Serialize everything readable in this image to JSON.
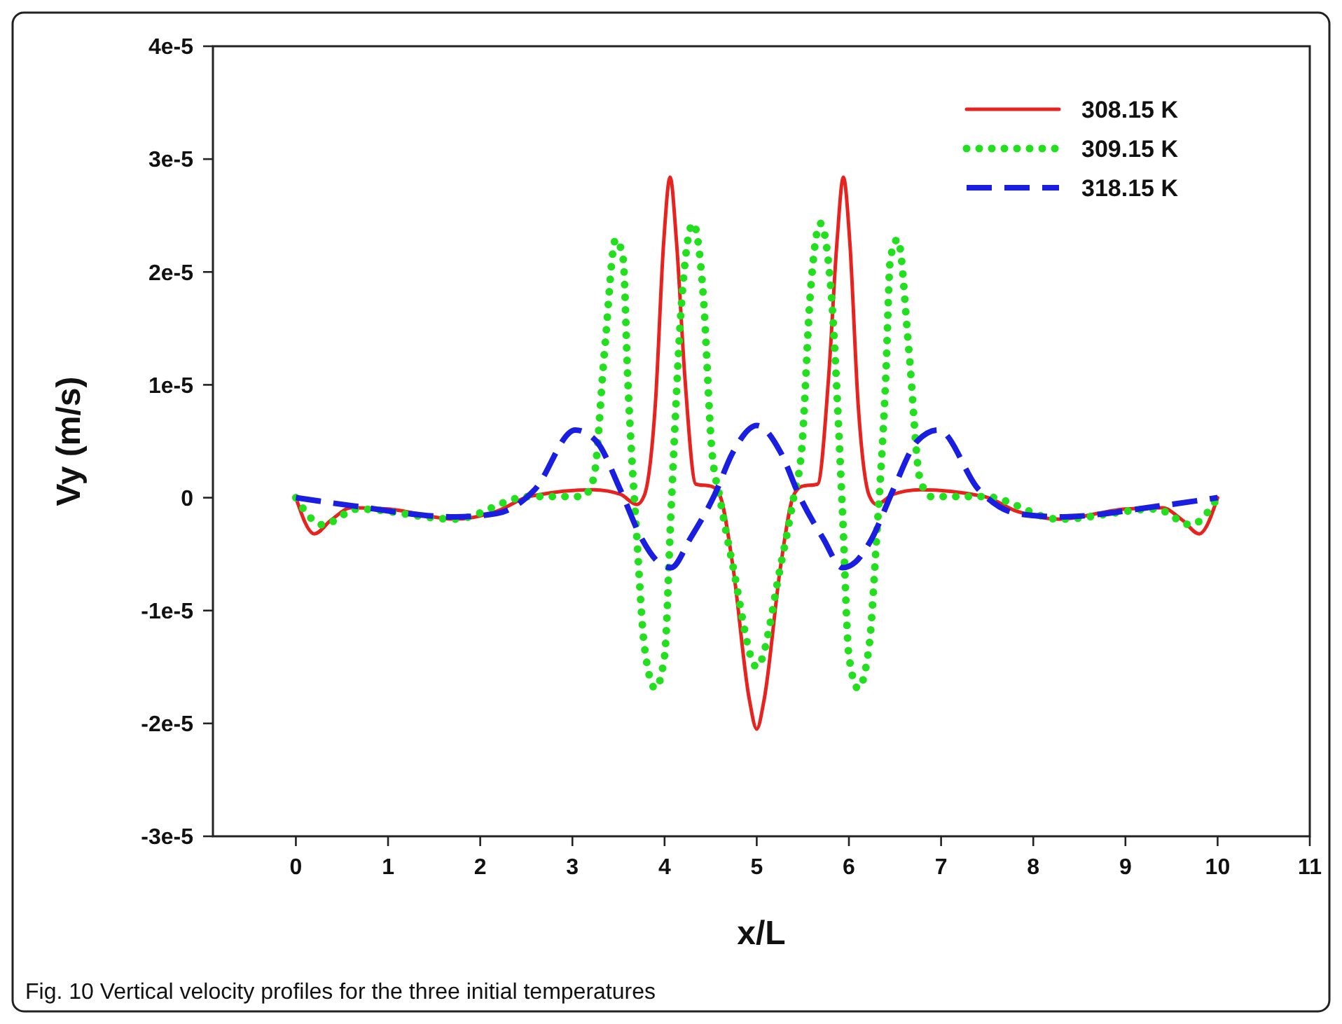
{
  "chart_data": {
    "type": "line",
    "xlabel": "x/L",
    "ylabel": "Vy (m/s)",
    "xlim": [
      -0.9,
      11
    ],
    "xticks": [
      0,
      1,
      2,
      3,
      4,
      5,
      6,
      7,
      8,
      9,
      10,
      11
    ],
    "ylim": [
      -3e-05,
      4e-05
    ],
    "yticks": [
      {
        "value": -3e-05,
        "label": "-3e-5"
      },
      {
        "value": -2e-05,
        "label": "-2e-5"
      },
      {
        "value": -1e-05,
        "label": "-1e-5"
      },
      0,
      {
        "value": 1e-05,
        "label": "1e-5"
      },
      {
        "value": 2e-05,
        "label": "2e-5"
      },
      {
        "value": 3e-05,
        "label": "3e-5"
      },
      {
        "value": 4e-05,
        "label": "4e-5"
      }
    ],
    "legend": "top right",
    "grid": false,
    "series": [
      {
        "name": "308.15 K",
        "color": "#e8231f",
        "line_style": "solid",
        "x": [
          0,
          0.2,
          0.38,
          0.6,
          1.0,
          1.72,
          2.18,
          2.53,
          3.23,
          3.52,
          3.7,
          3.78,
          3.9,
          3.99,
          4.06,
          4.13,
          4.22,
          4.34,
          4.51,
          4.6,
          4.74,
          4.92,
          5,
          5.08,
          5.26,
          5.4,
          5.49,
          5.66,
          5.78,
          5.87,
          5.94,
          6.01,
          6.1,
          6.22,
          6.3,
          6.48,
          6.77,
          7.47,
          7.82,
          8.28,
          9.0,
          9.4,
          9.62,
          9.8,
          10
        ],
        "values": [
          0,
          -3.2e-06,
          -2e-06,
          -9e-07,
          -1e-06,
          -1.9e-06,
          -1.2e-06,
          1e-07,
          7e-07,
          3e-07,
          -6e-07,
          2e-07,
          8.3e-06,
          2.26e-05,
          2.84e-05,
          2.26e-05,
          1.07e-05,
          1.2e-06,
          1e-06,
          2e-07,
          -6e-06,
          -1.79e-05,
          -2.05e-05,
          -1.79e-05,
          -6e-06,
          2e-07,
          1e-06,
          1.2e-06,
          1.07e-05,
          2.26e-05,
          2.84e-05,
          2.26e-05,
          8.3e-06,
          2e-07,
          -6e-07,
          3e-07,
          7e-07,
          1e-07,
          -1.2e-06,
          -1.9e-06,
          -1e-06,
          -9e-07,
          -2e-06,
          -3.2e-06,
          0
        ]
      },
      {
        "name": "309.15 K",
        "color": "#22e01e",
        "line_style": "dotted",
        "x": [
          0,
          0.29,
          0.67,
          1.72,
          2.53,
          3.11,
          3.23,
          3.35,
          3.47,
          3.55,
          3.6,
          3.7,
          3.78,
          3.9,
          4.0,
          4.07,
          4.19,
          4.31,
          4.42,
          4.51,
          4.6,
          4.74,
          5,
          5.26,
          5.4,
          5.49,
          5.58,
          5.69,
          5.81,
          5.93,
          6.0,
          6.1,
          6.22,
          6.3,
          6.4,
          6.45,
          6.53,
          6.65,
          6.77,
          6.89,
          7.47,
          8.28,
          9.33,
          9.71,
          10
        ],
        "values": [
          0,
          -2.4e-06,
          -1e-06,
          -1.9e-06,
          1e-07,
          1e-07,
          1.7e-06,
          1.31e-05,
          2.29e-05,
          2.12e-05,
          1.07e-05,
          -3.6e-06,
          -1.31e-05,
          -1.69e-05,
          -1.4e-05,
          -1.2e-06,
          1.79e-05,
          2.43e-05,
          1.79e-05,
          4.5e-06,
          0,
          -6e-06,
          -1.5e-05,
          -6e-06,
          0,
          4.5e-06,
          1.79e-05,
          2.43e-05,
          1.79e-05,
          -1.2e-06,
          -1.4e-05,
          -1.69e-05,
          -1.31e-05,
          -3.6e-06,
          1.07e-05,
          2.12e-05,
          2.29e-05,
          1.31e-05,
          1.7e-06,
          1e-07,
          1e-07,
          -1.9e-06,
          -1e-06,
          -2.4e-06,
          0
        ]
      },
      {
        "name": "318.15 K",
        "color": "#1a1ee0",
        "line_style": "dashed",
        "x": [
          0,
          0.6,
          1.72,
          2.18,
          2.59,
          3.03,
          3.26,
          3.52,
          3.75,
          3.93,
          4.07,
          4.28,
          4.54,
          4.74,
          5,
          5.26,
          5.46,
          5.72,
          5.93,
          6.07,
          6.25,
          6.48,
          6.74,
          6.97,
          7.41,
          7.82,
          8.28,
          9.4,
          10
        ],
        "values": [
          0,
          -7e-07,
          -1.7e-06,
          -1.4e-06,
          7e-07,
          6e-06,
          5e-06,
          7e-07,
          -3.6e-06,
          -5.7e-06,
          -6.2e-06,
          -3.6e-06,
          2e-07,
          4e-06,
          6.4e-06,
          4e-06,
          2e-07,
          -3.6e-06,
          -6.2e-06,
          -5.7e-06,
          -3.6e-06,
          7e-07,
          5e-06,
          6e-06,
          7e-07,
          -1.4e-06,
          -1.7e-06,
          -7e-07,
          0
        ]
      }
    ],
    "annotations": [
      "Fig. 10 Vertical velocity profiles for the three initial temperatures"
    ]
  }
}
